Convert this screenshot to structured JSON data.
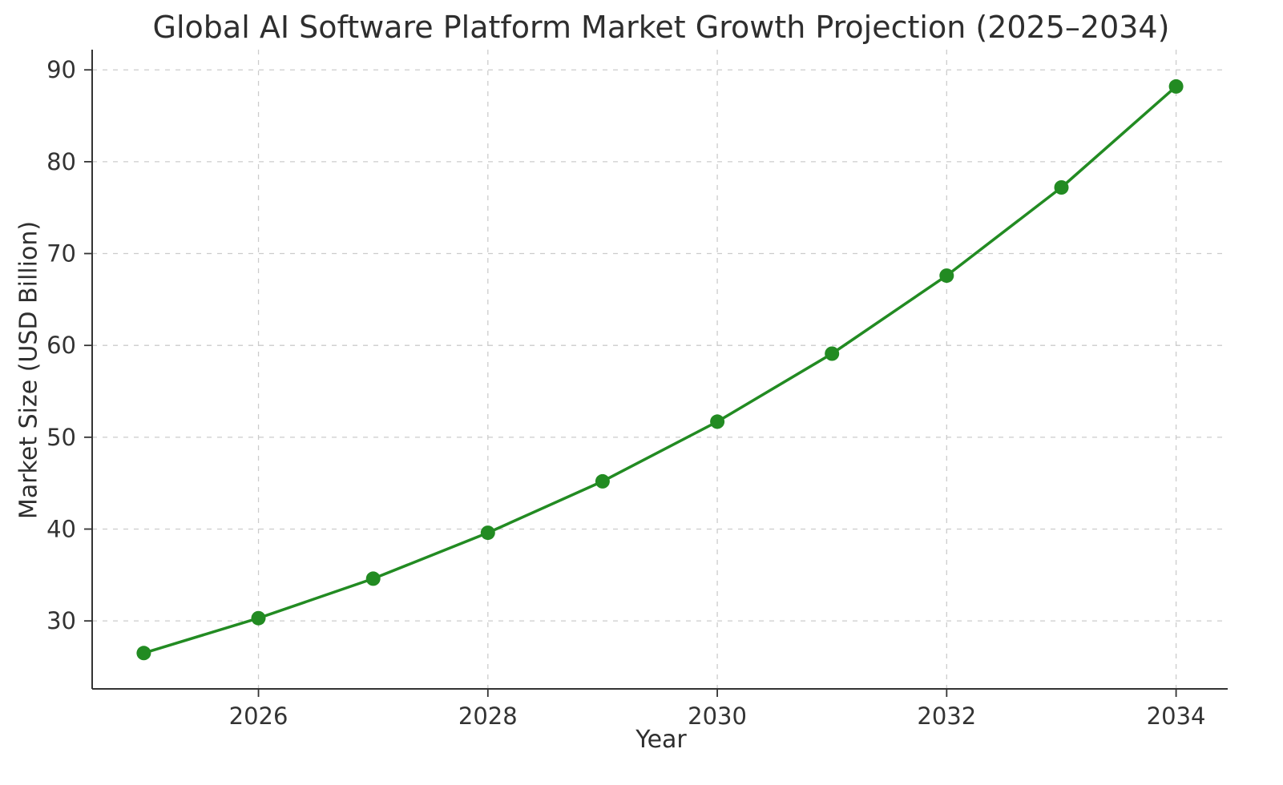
{
  "chart_data": {
    "type": "line",
    "title": "Global AI Software Platform Market Growth Projection (2025–2034)",
    "xlabel": "Year",
    "ylabel": "Market Size (USD Billion)",
    "x": [
      2025,
      2026,
      2027,
      2028,
      2029,
      2030,
      2031,
      2032,
      2033,
      2034
    ],
    "series": [
      {
        "name": "Market Size (USD Billion)",
        "values": [
          26.5,
          30.3,
          34.6,
          39.6,
          45.2,
          51.7,
          59.1,
          67.6,
          77.2,
          88.2
        ]
      }
    ],
    "x_ticks": [
      2026,
      2028,
      2030,
      2032,
      2034
    ],
    "y_ticks": [
      30,
      40,
      50,
      60,
      70,
      80,
      90
    ],
    "xlim": [
      2024.55,
      2034.45
    ],
    "ylim": [
      22.6,
      92.2
    ],
    "grid": true,
    "legend": "none",
    "line_color": "#228B22",
    "marker": "circle",
    "marker_color": "#228B22"
  }
}
